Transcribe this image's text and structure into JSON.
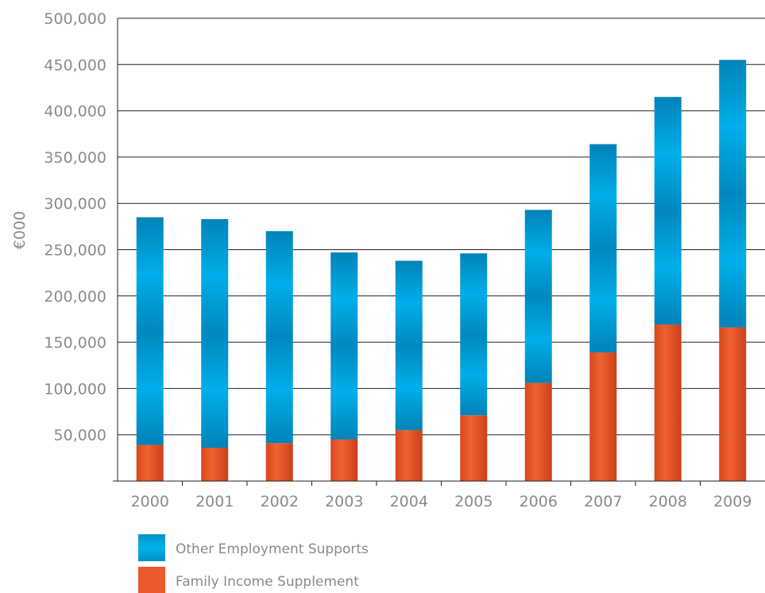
{
  "chart_data": {
    "type": "bar",
    "stacked": true,
    "categories": [
      "2000",
      "2001",
      "2002",
      "2003",
      "2004",
      "2005",
      "2006",
      "2007",
      "2008",
      "2009"
    ],
    "series": [
      {
        "name": "Family Income Supplement",
        "color": "#e8582b",
        "values": [
          39000,
          36000,
          41000,
          45000,
          55000,
          71000,
          106000,
          139000,
          169000,
          166000
        ]
      },
      {
        "name": "Other Employment Supports",
        "color": "#0095d2",
        "values": [
          246000,
          247000,
          229000,
          202000,
          183000,
          175000,
          187000,
          225000,
          246000,
          289000
        ]
      }
    ],
    "totals": [
      285000,
      283000,
      270000,
      247000,
      238000,
      246000,
      293000,
      364000,
      415000,
      455000
    ],
    "ylabel": "€000",
    "ylim": [
      0,
      500000
    ],
    "yticks": [
      50000,
      100000,
      150000,
      200000,
      250000,
      300000,
      350000,
      400000,
      450000,
      500000
    ],
    "ytick_labels": [
      "50,000",
      "100,000",
      "150,000",
      "200,000",
      "250,000",
      "300,000",
      "350,000",
      "400,000",
      "450,000",
      "500,000"
    ],
    "grid": "horizontal",
    "legend_position": "bottom-left",
    "legend": [
      {
        "label": "Other Employment Supports",
        "color": "#0095d2"
      },
      {
        "label": "Family Income Supplement",
        "color": "#e8582b"
      }
    ]
  }
}
